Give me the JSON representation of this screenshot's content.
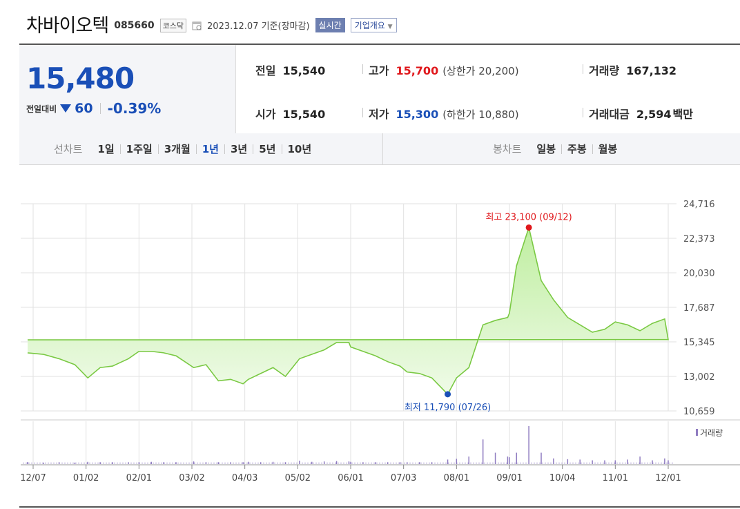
{
  "header": {
    "name": "차바이오텍",
    "code": "085660",
    "market": "코스닥",
    "as_of": "2023.12.07 기준(장마감)",
    "realtime_label": "실시간",
    "company_label": "기업개요"
  },
  "quote": {
    "price": "15,480",
    "change_label": "전일대비",
    "change_amount": "60",
    "change_percent": "-0.39%",
    "prev_close_label": "전일",
    "prev_close": "15,540",
    "high_label": "고가",
    "high": "15,700",
    "upper_limit": "(상한가 20,200)",
    "volume_label": "거래량",
    "volume": "167,132",
    "open_label": "시가",
    "open": "15,540",
    "low_label": "저가",
    "low": "15,300",
    "lower_limit": "(하한가 10,880)",
    "amount_label": "거래대금",
    "amount": "2,594",
    "amount_unit": "백만"
  },
  "period_tabs": {
    "line_label": "선차트",
    "line_options": [
      "1일",
      "1주일",
      "3개월",
      "1년",
      "3년",
      "5년",
      "10년"
    ],
    "active": "1년",
    "candle_label": "봉차트",
    "candle_options": [
      "일봉",
      "주봉",
      "월봉"
    ]
  },
  "chart_data": {
    "type": "area",
    "x_labels": [
      "12/07",
      "01/02",
      "02/01",
      "03/02",
      "04/03",
      "05/02",
      "06/01",
      "07/03",
      "08/01",
      "09/01",
      "10/04",
      "11/01",
      "12/01"
    ],
    "y_ticks": [
      "24,716",
      "22,373",
      "20,030",
      "17,687",
      "15,345",
      "13,002",
      "10,659"
    ],
    "ylim": [
      10659,
      24716
    ],
    "x": [
      "12/07",
      "12/14",
      "12/21",
      "12/28",
      "01/02",
      "01/09",
      "01/16",
      "01/25",
      "02/01",
      "02/08",
      "02/15",
      "02/22",
      "03/02",
      "03/09",
      "03/16",
      "03/23",
      "03/30",
      "04/03",
      "04/10",
      "04/17",
      "04/24",
      "05/02",
      "05/09",
      "05/16",
      "05/23",
      "05/30",
      "06/01",
      "06/08",
      "06/15",
      "06/22",
      "06/29",
      "07/03",
      "07/10",
      "07/17",
      "07/26",
      "08/01",
      "08/08",
      "08/16",
      "08/23",
      "08/30",
      "09/01",
      "09/05",
      "09/12",
      "09/19",
      "09/26",
      "10/04",
      "10/11",
      "10/18",
      "10/25",
      "11/01",
      "11/08",
      "11/15",
      "11/22",
      "11/29",
      "12/01",
      "12/07"
    ],
    "values": [
      14600,
      14500,
      14200,
      13800,
      12900,
      13600,
      13700,
      14200,
      14700,
      14700,
      14600,
      14400,
      13600,
      13800,
      12700,
      12800,
      12500,
      12800,
      13200,
      13600,
      13000,
      14200,
      14500,
      14800,
      15300,
      15300,
      15000,
      14700,
      14400,
      14000,
      13700,
      13300,
      13200,
      12900,
      11790,
      12900,
      13600,
      16500,
      16800,
      17000,
      17300,
      20500,
      23100,
      19500,
      18200,
      17000,
      16500,
      16000,
      16200,
      16700,
      16500,
      16100,
      16600,
      16900,
      15500,
      15480
    ],
    "annotations": {
      "max_label": "최고 23,100 (09/12)",
      "max_x": "09/12",
      "max_value": 23100,
      "min_label": "최저 11,790 (07/26)",
      "min_x": "07/26",
      "min_value": 11790
    },
    "volume_label": "거래량",
    "volume_values": [
      0.05,
      0.04,
      0.05,
      0.04,
      0.06,
      0.05,
      0.05,
      0.05,
      0.05,
      0.06,
      0.05,
      0.05,
      0.07,
      0.05,
      0.05,
      0.05,
      0.05,
      0.06,
      0.05,
      0.06,
      0.05,
      0.09,
      0.06,
      0.07,
      0.08,
      0.07,
      0.06,
      0.05,
      0.05,
      0.05,
      0.05,
      0.05,
      0.05,
      0.05,
      0.12,
      0.14,
      0.2,
      0.65,
      0.3,
      0.2,
      0.18,
      0.3,
      1.0,
      0.3,
      0.15,
      0.13,
      0.12,
      0.1,
      0.1,
      0.1,
      0.12,
      0.2,
      0.1,
      0.15,
      0.1,
      0.05
    ],
    "grid": true,
    "colors": {
      "line": "#7ac943",
      "fill_top": "#bfeea0",
      "fill_bottom": "#f4fcef",
      "max": "#e0181c",
      "min": "#1a4fb7",
      "volume": "#8e7bc0",
      "grid": "#e2e2e2"
    }
  }
}
